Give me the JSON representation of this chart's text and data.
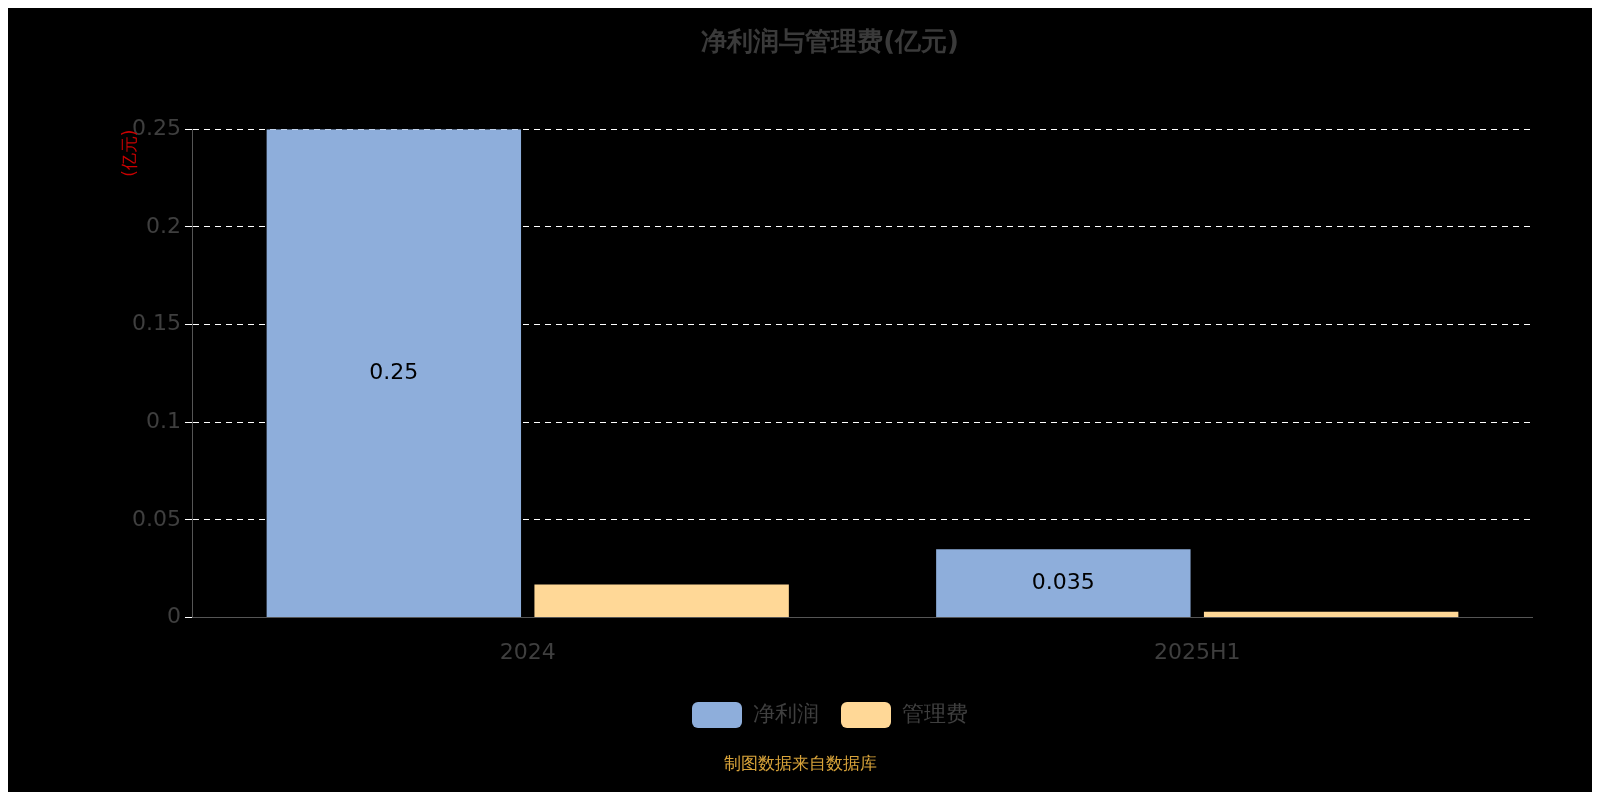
{
  "chart_data": {
    "type": "bar",
    "title": "净利润与管理费(亿元)",
    "ylabel": "(亿元)",
    "categories": [
      "2024",
      "2025H1"
    ],
    "series": [
      {
        "name": "净利润",
        "color": "#8eaedb",
        "values": [
          0.25,
          0.035
        ],
        "value_labels": [
          "0.25",
          "0.035"
        ]
      },
      {
        "name": "管理费",
        "color": "#ffd897",
        "values": [
          0.017,
          0.003
        ]
      }
    ],
    "ylim": [
      0,
      0.25
    ],
    "yticks": [
      0,
      0.05,
      0.1,
      0.15,
      0.2,
      0.25
    ],
    "grid": "y",
    "line_style": "dashed",
    "legend": "bottom",
    "annotations": [
      "制图数据来自数据库"
    ]
  }
}
